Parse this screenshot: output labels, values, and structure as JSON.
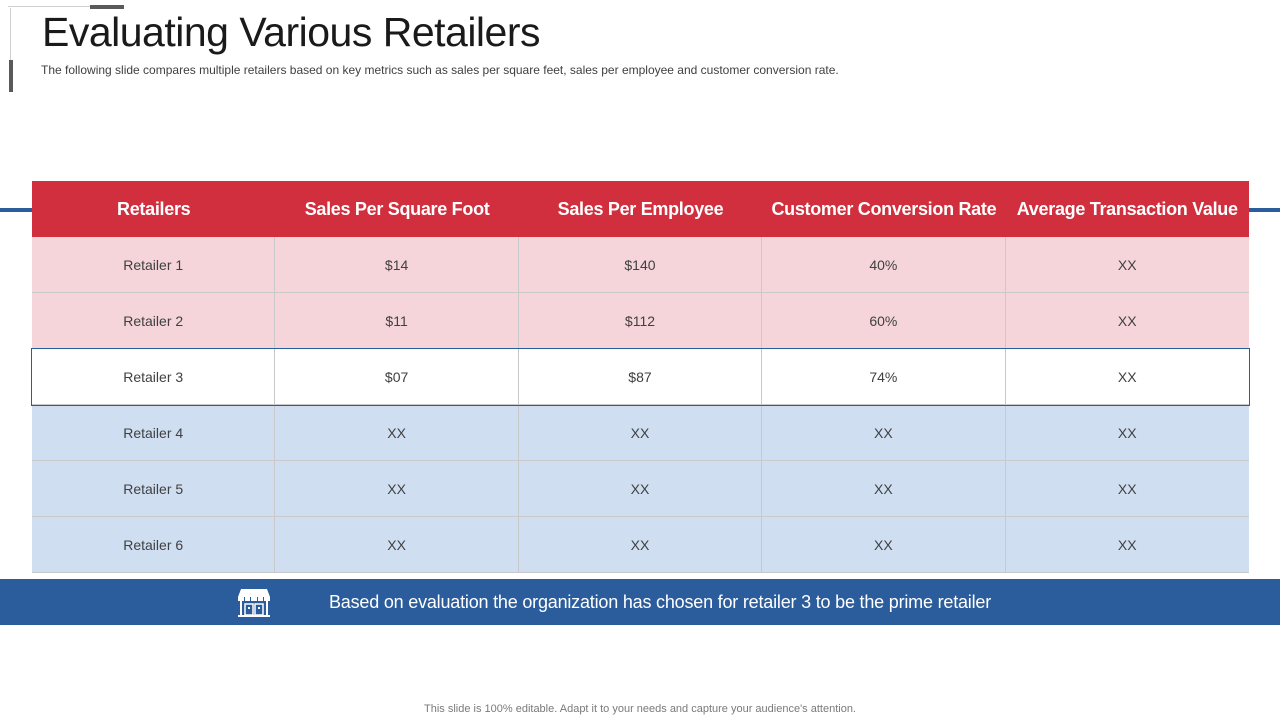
{
  "slide": {
    "title": "Evaluating Various Retailers",
    "subtitle": "The following  slide compares multiple retailers based  on key metrics such as sales per square feet, sales per employee and customer conversion rate."
  },
  "table": {
    "headers": [
      "Retailers",
      "Sales Per Square Foot",
      "Sales Per Employee",
      "Customer Conversion Rate",
      "Average Transaction Value"
    ],
    "rows": [
      [
        "Retailer 1",
        "$14",
        "$140",
        "40%",
        "XX"
      ],
      [
        "Retailer 2",
        "$11",
        "$112",
        "60%",
        "XX"
      ],
      [
        "Retailer 3",
        "$07",
        "$87",
        "74%",
        "XX"
      ],
      [
        "Retailer 4",
        "XX",
        "XX",
        "XX",
        "XX"
      ],
      [
        "Retailer 5",
        "XX",
        "XX",
        "XX",
        "XX"
      ],
      [
        "Retailer 6",
        "XX",
        "XX",
        "XX",
        "XX"
      ]
    ]
  },
  "banner": {
    "icon": "store-icon",
    "text": "Based on evaluation the organization has chosen for retailer 3 to be the prime retailer"
  },
  "footer": {
    "text": "This slide is  100% editable.  Adapt it  to your needs and capture your audience's attention."
  },
  "colors": {
    "header_red": "#d12f3e",
    "row_pink": "#f5d5d9",
    "row_blue": "#cfdff1",
    "accent_blue": "#2b5c9b"
  }
}
